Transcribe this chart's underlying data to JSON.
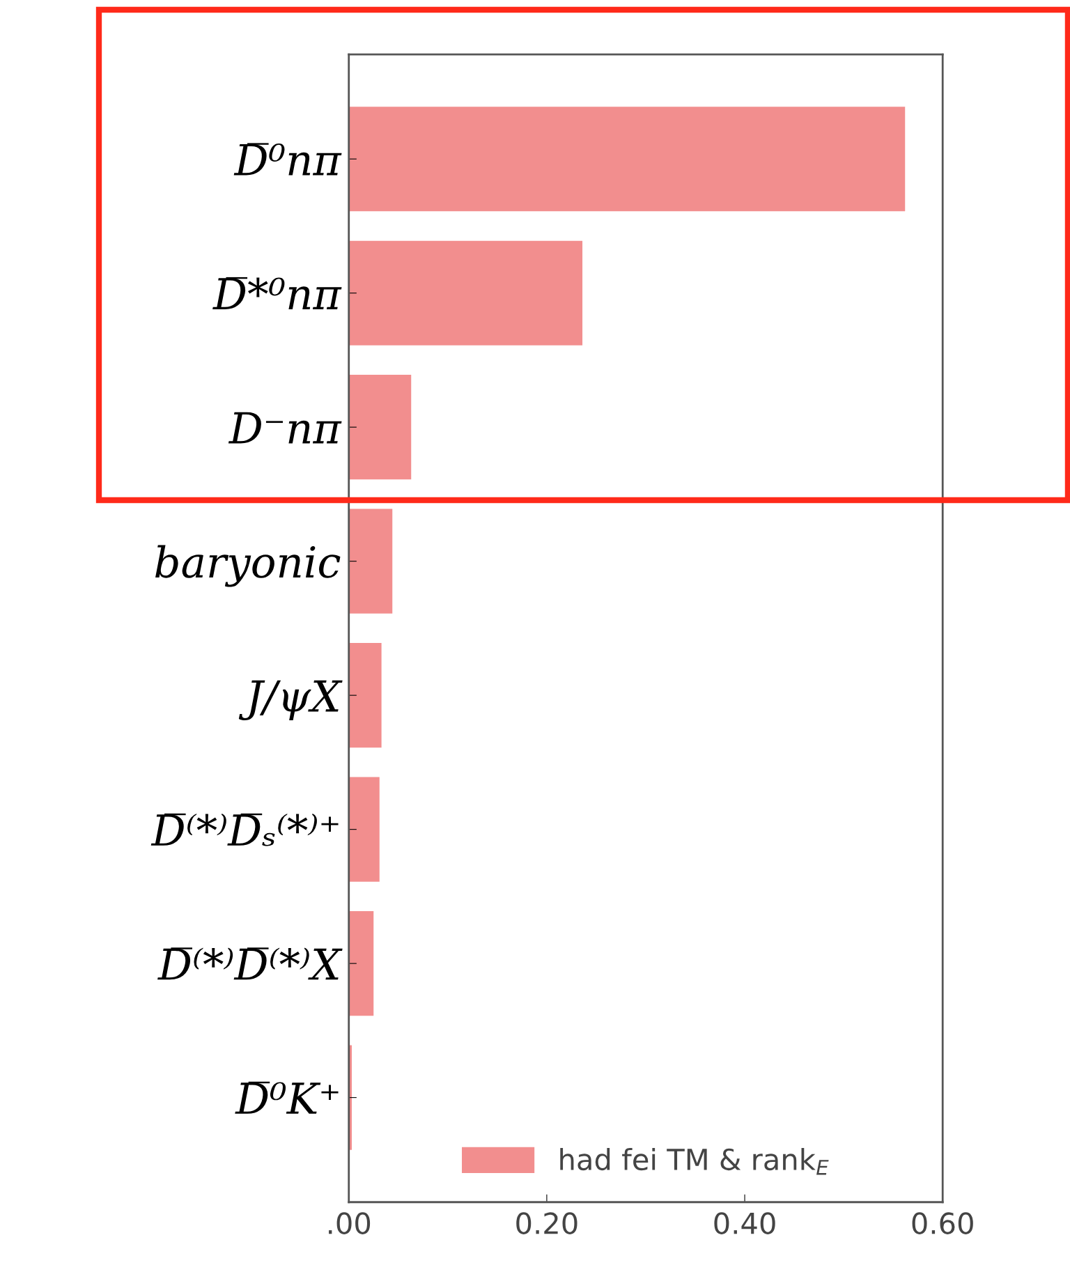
{
  "chart_data": {
    "type": "bar",
    "orientation": "horizontal",
    "categories": [
      "D̅⁰nπ",
      "D̅*⁰nπ",
      "D⁻nπ",
      "baryonic",
      "J/ψX",
      "D̅⁽*⁾D̅ₛ⁽*⁾⁺",
      "D̅⁽*⁾D̅⁽*⁾X",
      "D̅⁰K⁺"
    ],
    "series": [
      {
        "name": "had fei TM & rank$_{E}$",
        "color": "#f28e8e",
        "values": [
          0.562,
          0.236,
          0.063,
          0.044,
          0.033,
          0.031,
          0.025,
          0.003
        ]
      }
    ],
    "xlim": [
      0,
      0.6
    ],
    "xticks": [
      {
        "value": 0,
        "label": ".00"
      },
      {
        "value": 0.2,
        "label": "0.20"
      },
      {
        "value": 0.4,
        "label": "0.40"
      },
      {
        "value": 0.6,
        "label": "0.60"
      }
    ],
    "legend": "bottom",
    "grid": false
  }
}
